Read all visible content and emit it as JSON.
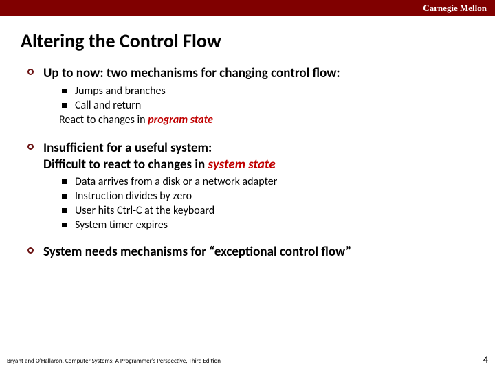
{
  "header": {
    "branding": "Carnegie Mellon"
  },
  "title": "Altering the Control Flow",
  "colors": {
    "header_bg": "#800000",
    "header_text": "#ffffff",
    "title_text": "#000000",
    "body_text": "#000000",
    "bullet_circle_border": "#6b1414",
    "bullet_square_fill": "#000000",
    "emphasis": "#c00000",
    "background": "#ffffff"
  },
  "typography": {
    "title_fontsize": 28,
    "level1_fontsize": 19,
    "level2_fontsize": 16,
    "footer_fontsize": 9,
    "page_num_fontsize": 14,
    "title_weight": "bold",
    "level1_weight": "bold",
    "level2_weight": "normal"
  },
  "bullets": [
    {
      "text": "Up to now: two mechanisms for changing control flow:",
      "sub": [
        {
          "text": "Jumps and branches"
        },
        {
          "text": "Call and return"
        }
      ],
      "tail_prefix": "React to changes in ",
      "tail_emph": "program state"
    },
    {
      "text_line1": "Insufficient  for a useful system:",
      "text_line2_prefix": "Difficult to react to changes in ",
      "text_line2_emph": "system state",
      "sub": [
        {
          "text": "Data arrives from a disk or a network adapter"
        },
        {
          "text": "Instruction divides by zero"
        },
        {
          "text": "User hits Ctrl-C at the keyboard"
        },
        {
          "text": "System timer expires"
        }
      ]
    },
    {
      "text": "System needs mechanisms for “exceptional control flow”"
    }
  ],
  "footer": {
    "citation": "Bryant and O'Hallaron, Computer Systems: A Programmer's Perspective, Third Edition",
    "page_number": "4"
  }
}
